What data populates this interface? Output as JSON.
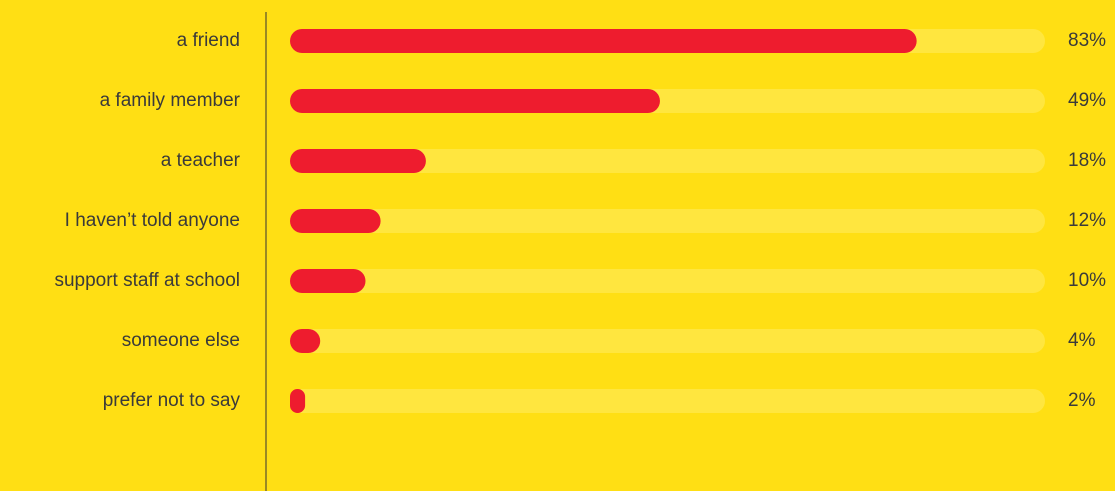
{
  "chart_data": {
    "type": "barh",
    "categories": [
      "a friend",
      "a family member",
      "a teacher",
      "I haven’t told anyone",
      "support staff at school",
      "someone else",
      "prefer not to say"
    ],
    "values": [
      83,
      49,
      18,
      12,
      10,
      4,
      2
    ],
    "value_labels": [
      "83%",
      "49%",
      "18%",
      "12%",
      "10%",
      "4%",
      "2%"
    ],
    "color": "#ee1c2e",
    "track_color": "#ffe63f",
    "xlim": [
      0,
      100
    ]
  }
}
